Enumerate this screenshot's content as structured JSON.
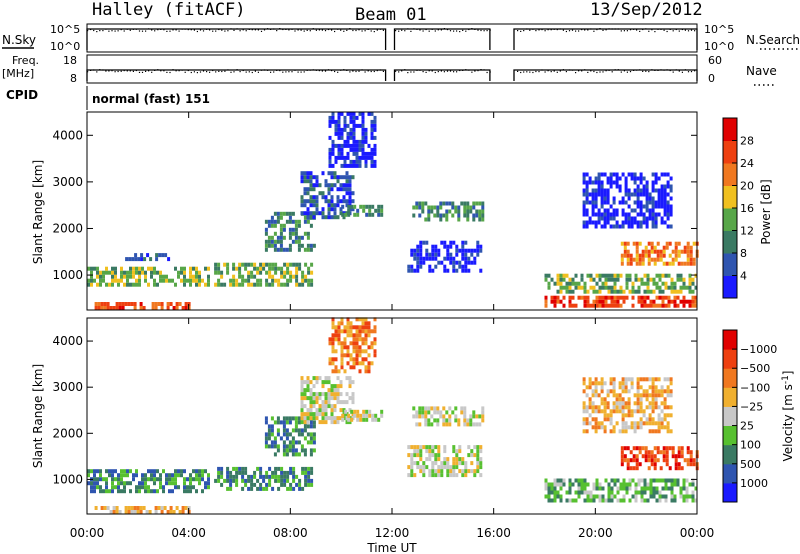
{
  "header": {
    "station": "Halley (fitACF)",
    "beam": "Beam 01",
    "date": "13/Sep/2012"
  },
  "status_panels": {
    "nsky_label": "N.Sky",
    "nsky_ticks": [
      "10^5",
      "10^0"
    ],
    "nsearch_label": "N.Search",
    "nsearch_ticks": [
      "10^5",
      "10^0"
    ],
    "freq_label": "Freq.",
    "freq_unit": "[MHz]",
    "freq_ticks": [
      "18",
      "8"
    ],
    "nave_label": "Nave",
    "nave_ticks": [
      "60",
      "0"
    ],
    "cpid_label": "CPID",
    "cpid_value": "normal (fast) 151",
    "data_gaps_hours": [
      [
        11.75,
        12.1
      ],
      [
        15.85,
        16.8
      ]
    ]
  },
  "chart_data": [
    {
      "type": "heatmap",
      "panel": "power",
      "ylabel": "Slant Range [km]",
      "y_ticks": [
        1000,
        2000,
        3000,
        4000
      ],
      "ylim": [
        250,
        4500
      ],
      "x_ticks": [
        "00:00",
        "04:00",
        "08:00",
        "12:00",
        "16:00",
        "20:00",
        "00:00"
      ],
      "xlim_hours": [
        0,
        24
      ],
      "colorbar": {
        "label": "Power [dB]",
        "ticks": [
          "4",
          "8",
          "12",
          "16",
          "20",
          "24",
          "28"
        ],
        "colors": [
          "#1a1aff",
          "#2f55b0",
          "#3a7a63",
          "#57a648",
          "#f0c020",
          "#f07820",
          "#ee4010",
          "#e00000"
        ]
      },
      "regions": [
        {
          "t0": 0.0,
          "t1": 4.8,
          "r0": 750,
          "r1": 1150,
          "level": 3
        },
        {
          "t0": 0.3,
          "t1": 4.0,
          "r0": 250,
          "r1": 400,
          "level": 6
        },
        {
          "t0": 1.5,
          "t1": 3.2,
          "r0": 1300,
          "r1": 1450,
          "level": 1
        },
        {
          "t0": 5.0,
          "t1": 8.8,
          "r0": 750,
          "r1": 1250,
          "level": 3
        },
        {
          "t0": 7.0,
          "t1": 9.0,
          "r0": 1500,
          "r1": 2300,
          "level": 2
        },
        {
          "t0": 8.4,
          "t1": 10.5,
          "r0": 2200,
          "r1": 3200,
          "level": 1
        },
        {
          "t0": 9.5,
          "t1": 11.3,
          "r0": 3300,
          "r1": 4500,
          "level": 0
        },
        {
          "t0": 10.0,
          "t1": 11.6,
          "r0": 2250,
          "r1": 2500,
          "level": 2
        },
        {
          "t0": 12.8,
          "t1": 15.6,
          "r0": 2150,
          "r1": 2550,
          "level": 2
        },
        {
          "t0": 12.6,
          "t1": 15.5,
          "r0": 1050,
          "r1": 1700,
          "level": 0
        },
        {
          "t0": 18.0,
          "t1": 24.0,
          "r0": 300,
          "r1": 550,
          "level": 6
        },
        {
          "t0": 18.0,
          "t1": 24.0,
          "r0": 600,
          "r1": 1000,
          "level": 3
        },
        {
          "t0": 21.0,
          "t1": 24.0,
          "r0": 1200,
          "r1": 1650,
          "level": 5
        },
        {
          "t0": 19.5,
          "t1": 23.0,
          "r0": 2000,
          "r1": 3200,
          "level": 0
        }
      ]
    },
    {
      "type": "heatmap",
      "panel": "velocity",
      "ylabel": "Slant Range [km]",
      "y_ticks": [
        1000,
        2000,
        3000,
        4000
      ],
      "ylim": [
        250,
        4500
      ],
      "x_ticks": [
        "00:00",
        "04:00",
        "08:00",
        "12:00",
        "16:00",
        "20:00",
        "00:00"
      ],
      "xlim_hours": [
        0,
        24
      ],
      "xlabel": "Time UT",
      "colorbar": {
        "label": "Velocity [m s",
        "label_superscript": "-1",
        "label_close": "]",
        "ticks": [
          "1000",
          "500",
          "100",
          "25",
          "−25",
          "−100",
          "−500",
          "−1000"
        ],
        "colors": [
          "#1a1aff",
          "#2f55b0",
          "#3a7a63",
          "#57c030",
          "#c8c8c8",
          "#f0b030",
          "#f07820",
          "#ee4010",
          "#e00000"
        ]
      },
      "regions": [
        {
          "t0": 0.0,
          "t1": 4.8,
          "r0": 700,
          "r1": 1150,
          "level": 2
        },
        {
          "t0": 0.3,
          "t1": 4.0,
          "r0": 250,
          "r1": 400,
          "level": 5
        },
        {
          "t0": 5.0,
          "t1": 8.8,
          "r0": 750,
          "r1": 1250,
          "level": 2
        },
        {
          "t0": 7.0,
          "t1": 9.0,
          "r0": 1500,
          "r1": 2300,
          "level": 2
        },
        {
          "t0": 8.4,
          "t1": 10.5,
          "r0": 2200,
          "r1": 3200,
          "level": 4
        },
        {
          "t0": 9.5,
          "t1": 11.3,
          "r0": 3300,
          "r1": 4500,
          "level": 6
        },
        {
          "t0": 10.0,
          "t1": 11.6,
          "r0": 2250,
          "r1": 2500,
          "level": 4
        },
        {
          "t0": 12.8,
          "t1": 15.6,
          "r0": 2150,
          "r1": 2550,
          "level": 4
        },
        {
          "t0": 12.6,
          "t1": 15.5,
          "r0": 1050,
          "r1": 1700,
          "level": 4
        },
        {
          "t0": 18.0,
          "t1": 24.0,
          "r0": 500,
          "r1": 950,
          "level": 3
        },
        {
          "t0": 21.0,
          "t1": 24.0,
          "r0": 1200,
          "r1": 1650,
          "level": 7
        },
        {
          "t0": 19.5,
          "t1": 23.0,
          "r0": 2000,
          "r1": 3200,
          "level": 5
        }
      ]
    }
  ]
}
